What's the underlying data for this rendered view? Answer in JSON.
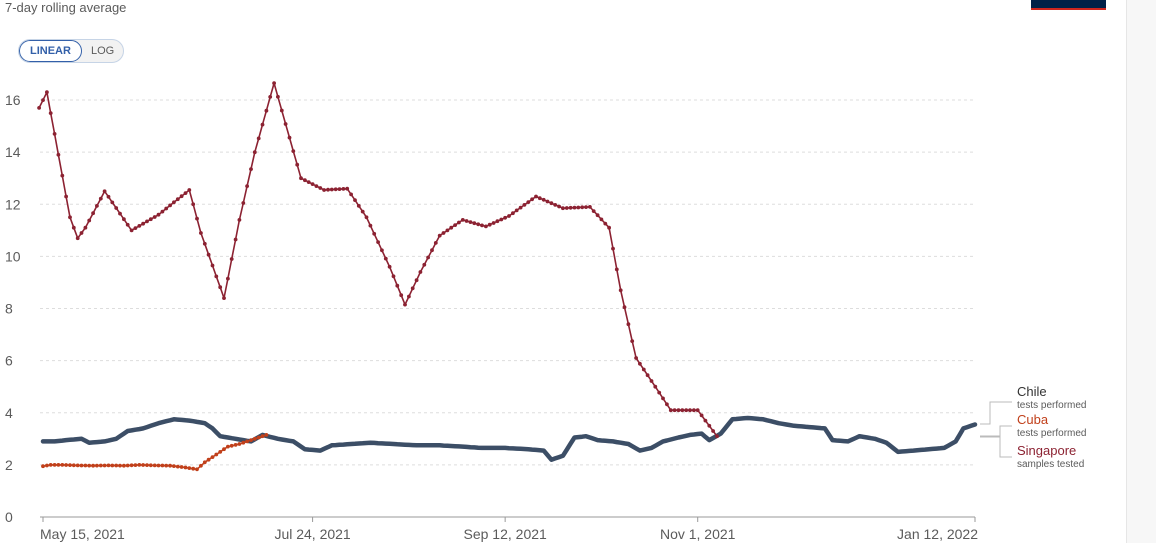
{
  "header": {
    "subtitle": "7-day rolling average"
  },
  "scale_toggle": {
    "linear_label": "LINEAR",
    "log_label": "LOG",
    "selected": "LINEAR"
  },
  "chart_data": {
    "type": "line",
    "subtitle": "7-day rolling average",
    "ylim": [
      0,
      17
    ],
    "yticks": [
      0,
      2,
      4,
      6,
      8,
      10,
      12,
      14,
      16
    ],
    "xlim": [
      "2021-05-15",
      "2022-01-12"
    ],
    "xticks": [
      {
        "date": "2021-05-15",
        "label": "May 15, 2021"
      },
      {
        "date": "2021-07-24",
        "label": "Jul 24, 2021"
      },
      {
        "date": "2021-09-12",
        "label": "Sep 12, 2021"
      },
      {
        "date": "2021-11-01",
        "label": "Nov 1, 2021"
      },
      {
        "date": "2022-01-12",
        "label": "Jan 12, 2022"
      }
    ],
    "grid": true,
    "legend_position": "right",
    "series": [
      {
        "name": "Chile",
        "sub": "tests performed",
        "color": "#3c4e66",
        "markers": false,
        "points": [
          [
            "2021-05-15",
            2.9
          ],
          [
            "2021-05-18",
            2.9
          ],
          [
            "2021-05-21",
            2.95
          ],
          [
            "2021-05-25",
            3.0
          ],
          [
            "2021-05-27",
            2.85
          ],
          [
            "2021-05-31",
            2.9
          ],
          [
            "2021-06-03",
            3.0
          ],
          [
            "2021-06-06",
            3.3
          ],
          [
            "2021-06-10",
            3.4
          ],
          [
            "2021-06-14",
            3.6
          ],
          [
            "2021-06-18",
            3.75
          ],
          [
            "2021-06-22",
            3.7
          ],
          [
            "2021-06-26",
            3.6
          ],
          [
            "2021-06-28",
            3.4
          ],
          [
            "2021-06-30",
            3.1
          ],
          [
            "2021-07-04",
            3.0
          ],
          [
            "2021-07-08",
            2.9
          ],
          [
            "2021-07-11",
            3.15
          ],
          [
            "2021-07-15",
            3.0
          ],
          [
            "2021-07-19",
            2.9
          ],
          [
            "2021-07-22",
            2.6
          ],
          [
            "2021-07-26",
            2.55
          ],
          [
            "2021-07-29",
            2.75
          ],
          [
            "2021-08-03",
            2.8
          ],
          [
            "2021-08-08",
            2.85
          ],
          [
            "2021-08-14",
            2.8
          ],
          [
            "2021-08-20",
            2.75
          ],
          [
            "2021-08-26",
            2.75
          ],
          [
            "2021-09-01",
            2.7
          ],
          [
            "2021-09-06",
            2.65
          ],
          [
            "2021-09-12",
            2.65
          ],
          [
            "2021-09-18",
            2.6
          ],
          [
            "2021-09-22",
            2.55
          ],
          [
            "2021-09-24",
            2.2
          ],
          [
            "2021-09-27",
            2.35
          ],
          [
            "2021-09-30",
            3.05
          ],
          [
            "2021-10-03",
            3.1
          ],
          [
            "2021-10-06",
            2.95
          ],
          [
            "2021-10-10",
            2.9
          ],
          [
            "2021-10-14",
            2.8
          ],
          [
            "2021-10-17",
            2.55
          ],
          [
            "2021-10-20",
            2.65
          ],
          [
            "2021-10-23",
            2.9
          ],
          [
            "2021-10-27",
            3.05
          ],
          [
            "2021-10-30",
            3.15
          ],
          [
            "2021-11-02",
            3.2
          ],
          [
            "2021-11-04",
            2.95
          ],
          [
            "2021-11-07",
            3.2
          ],
          [
            "2021-11-10",
            3.75
          ],
          [
            "2021-11-14",
            3.8
          ],
          [
            "2021-11-18",
            3.75
          ],
          [
            "2021-11-22",
            3.6
          ],
          [
            "2021-11-26",
            3.5
          ],
          [
            "2021-11-30",
            3.45
          ],
          [
            "2021-12-04",
            3.4
          ],
          [
            "2021-12-06",
            2.95
          ],
          [
            "2021-12-10",
            2.9
          ],
          [
            "2021-12-13",
            3.1
          ],
          [
            "2021-12-17",
            3.0
          ],
          [
            "2021-12-20",
            2.85
          ],
          [
            "2021-12-23",
            2.5
          ],
          [
            "2021-12-27",
            2.55
          ],
          [
            "2021-12-31",
            2.6
          ],
          [
            "2022-01-04",
            2.65
          ],
          [
            "2022-01-07",
            2.9
          ],
          [
            "2022-01-09",
            3.4
          ],
          [
            "2022-01-12",
            3.55
          ]
        ]
      },
      {
        "name": "Cuba",
        "sub": "tests performed",
        "color": "#c1401b",
        "markers": true,
        "points": [
          [
            "2021-05-15",
            1.95
          ],
          [
            "2021-05-17",
            2.0
          ],
          [
            "2021-05-20",
            2.0
          ],
          [
            "2021-05-24",
            1.98
          ],
          [
            "2021-05-28",
            1.97
          ],
          [
            "2021-06-01",
            1.98
          ],
          [
            "2021-06-05",
            1.97
          ],
          [
            "2021-06-09",
            2.0
          ],
          [
            "2021-06-13",
            1.98
          ],
          [
            "2021-06-17",
            1.97
          ],
          [
            "2021-06-21",
            1.9
          ],
          [
            "2021-06-24",
            1.83
          ],
          [
            "2021-06-26",
            2.1
          ],
          [
            "2021-06-29",
            2.4
          ],
          [
            "2021-07-02",
            2.7
          ],
          [
            "2021-07-05",
            2.8
          ],
          [
            "2021-07-08",
            2.95
          ],
          [
            "2021-07-12",
            3.15
          ]
        ]
      },
      {
        "name": "Singapore",
        "sub": "samples tested",
        "color": "#8c2232",
        "markers": true,
        "points": [
          [
            "2021-05-14",
            15.7
          ],
          [
            "2021-05-16",
            16.3
          ],
          [
            "2021-05-18",
            14.7
          ],
          [
            "2021-05-20",
            13.1
          ],
          [
            "2021-05-22",
            11.5
          ],
          [
            "2021-05-24",
            10.7
          ],
          [
            "2021-05-26",
            11.1
          ],
          [
            "2021-05-31",
            12.5
          ],
          [
            "2021-06-07",
            11.0
          ],
          [
            "2021-06-14",
            11.6
          ],
          [
            "2021-06-22",
            12.55
          ],
          [
            "2021-06-25",
            10.9
          ],
          [
            "2021-07-01",
            8.4
          ],
          [
            "2021-07-05",
            11.4
          ],
          [
            "2021-07-09",
            14.0
          ],
          [
            "2021-07-14",
            16.65
          ],
          [
            "2021-07-16",
            15.6
          ],
          [
            "2021-07-21",
            13.0
          ],
          [
            "2021-07-27",
            12.55
          ],
          [
            "2021-08-02",
            12.6
          ],
          [
            "2021-08-07",
            11.5
          ],
          [
            "2021-08-13",
            9.6
          ],
          [
            "2021-08-17",
            8.15
          ],
          [
            "2021-08-21",
            9.4
          ],
          [
            "2021-08-26",
            10.8
          ],
          [
            "2021-09-01",
            11.4
          ],
          [
            "2021-09-07",
            11.15
          ],
          [
            "2021-09-13",
            11.55
          ],
          [
            "2021-09-20",
            12.3
          ],
          [
            "2021-09-27",
            11.85
          ],
          [
            "2021-10-04",
            11.9
          ],
          [
            "2021-10-09",
            11.1
          ],
          [
            "2021-10-12",
            8.7
          ],
          [
            "2021-10-16",
            6.1
          ],
          [
            "2021-10-21",
            5.0
          ],
          [
            "2021-10-25",
            4.1
          ],
          [
            "2021-11-01",
            4.1
          ],
          [
            "2021-11-06",
            3.1
          ]
        ]
      }
    ]
  }
}
